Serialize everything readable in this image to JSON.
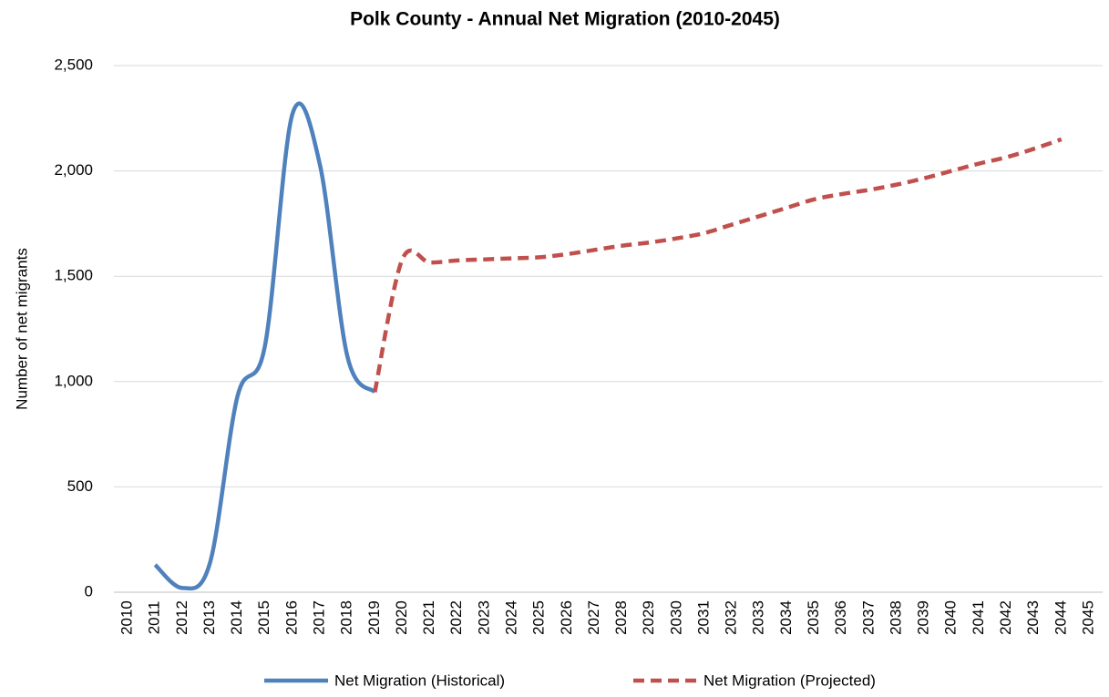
{
  "chart_data": {
    "type": "line",
    "title": "Polk County - Annual Net Migration (2010-2045)",
    "y_label": "Number of net migrants",
    "categories": [
      "2010",
      "2011",
      "2012",
      "2013",
      "2014",
      "2015",
      "2016",
      "2017",
      "2018",
      "2019",
      "2020",
      "2021",
      "2022",
      "2023",
      "2024",
      "2025",
      "2026",
      "2027",
      "2028",
      "2029",
      "2030",
      "2031",
      "2032",
      "2033",
      "2034",
      "2035",
      "2036",
      "2037",
      "2038",
      "2039",
      "2040",
      "2041",
      "2042",
      "2043",
      "2044",
      "2045"
    ],
    "series": [
      {
        "name": "Net Migration (Historical)",
        "color": "#4f81bd",
        "dash": false,
        "values": [
          null,
          130,
          20,
          140,
          930,
          1170,
          2270,
          2030,
          1120,
          950,
          null,
          null,
          null,
          null,
          null,
          null,
          null,
          null,
          null,
          null,
          null,
          null,
          null,
          null,
          null,
          null,
          null,
          null,
          null,
          null,
          null,
          null,
          null,
          null,
          null,
          null
        ]
      },
      {
        "name": "Net Migration (Projected)",
        "color": "#c0504d",
        "dash": true,
        "values": [
          null,
          null,
          null,
          null,
          null,
          null,
          null,
          null,
          null,
          950,
          1580,
          1565,
          1575,
          1580,
          1585,
          1590,
          1605,
          1625,
          1645,
          1660,
          1680,
          1705,
          1745,
          1785,
          1825,
          1865,
          1890,
          1910,
          1935,
          1965,
          2000,
          2035,
          2065,
          2105,
          2150,
          null
        ]
      }
    ],
    "ylim": [
      0,
      2500
    ],
    "yticks": [
      0,
      500,
      {
        "value": 1000,
        "label": "1,000"
      },
      {
        "value": 1500,
        "label": "1,500"
      },
      {
        "value": 2000,
        "label": "2,000"
      },
      {
        "value": 2500,
        "label": "2,500"
      }
    ],
    "grid": true,
    "legend": "bottom"
  }
}
